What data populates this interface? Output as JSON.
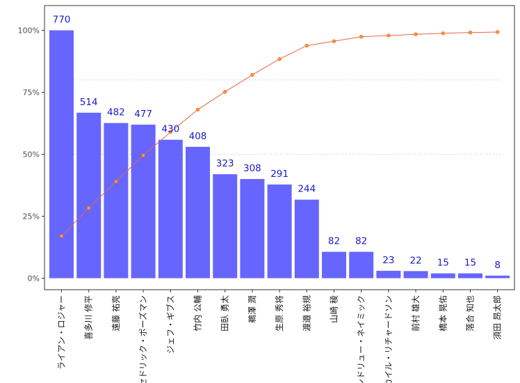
{
  "chart_data": {
    "type": "bar",
    "categories": [
      "ライアン・ロジャー",
      "喜多川 修平",
      "遠藤 祐亮",
      "セドリック・ボーズマン",
      "ジェフ・ギブス",
      "竹内 公輔",
      "田臥 勇太",
      "鵜澤 潤",
      "生原 秀将",
      "渡邉 裕規",
      "山崎 稜",
      "アンドリュー・ネイミック",
      "カイル・リチャードソン",
      "前村 雄大",
      "橋本 晃佑",
      "落合 知也",
      "須田 昂太郎"
    ],
    "values": [
      770,
      514,
      482,
      477,
      430,
      408,
      323,
      308,
      291,
      244,
      82,
      82,
      23,
      22,
      15,
      15,
      8
    ],
    "bar_labels": [
      "770",
      "514",
      "482",
      "477",
      "430",
      "408",
      "323",
      "308",
      "291",
      "244",
      "82",
      "82",
      "23",
      "22",
      "15",
      "15",
      "8"
    ],
    "cumulative_percent": [
      17.0,
      28.3,
      39.0,
      49.5,
      59.0,
      68.0,
      75.2,
      82.0,
      88.4,
      93.8,
      95.6,
      97.4,
      97.9,
      98.4,
      98.8,
      99.1,
      99.3
    ],
    "bar_scale_max": 770,
    "ylim": [
      0,
      1
    ],
    "y_ticks": [
      {
        "value": 0,
        "label": "0%"
      },
      {
        "value": 0.25,
        "label": "25%"
      },
      {
        "value": 0.5,
        "label": "50%"
      },
      {
        "value": 0.75,
        "label": "75%"
      },
      {
        "value": 1.0,
        "label": "100%"
      }
    ],
    "reference_lines": [
      0.5,
      0.8
    ],
    "title": "",
    "xlabel": "",
    "ylabel": "",
    "grid": false,
    "legend": "none",
    "colors": {
      "bar": "#6666ff",
      "line": "#e8604c",
      "point": "#f59a23",
      "reference": "#9fd8d0",
      "data_label": "#1a1acc"
    }
  }
}
